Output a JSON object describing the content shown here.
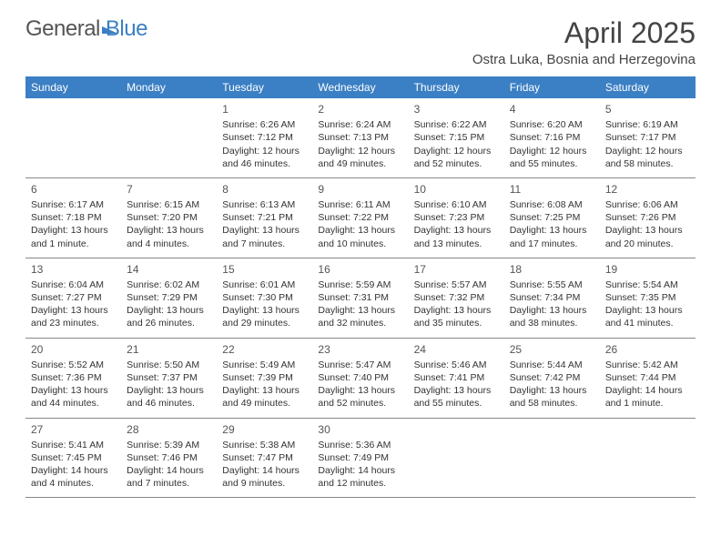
{
  "brand": {
    "part1": "General",
    "part2": "Blue"
  },
  "title": "April 2025",
  "location": "Ostra Luka, Bosnia and Herzegovina",
  "colors": {
    "header_bg": "#3b7fc4",
    "header_text": "#ffffff",
    "body_text": "#333333",
    "rule": "#888888",
    "background": "#ffffff"
  },
  "weekdays": [
    "Sunday",
    "Monday",
    "Tuesday",
    "Wednesday",
    "Thursday",
    "Friday",
    "Saturday"
  ],
  "weeks": [
    [
      null,
      null,
      {
        "n": "1",
        "sr": "Sunrise: 6:26 AM",
        "ss": "Sunset: 7:12 PM",
        "dl": "Daylight: 12 hours and 46 minutes."
      },
      {
        "n": "2",
        "sr": "Sunrise: 6:24 AM",
        "ss": "Sunset: 7:13 PM",
        "dl": "Daylight: 12 hours and 49 minutes."
      },
      {
        "n": "3",
        "sr": "Sunrise: 6:22 AM",
        "ss": "Sunset: 7:15 PM",
        "dl": "Daylight: 12 hours and 52 minutes."
      },
      {
        "n": "4",
        "sr": "Sunrise: 6:20 AM",
        "ss": "Sunset: 7:16 PM",
        "dl": "Daylight: 12 hours and 55 minutes."
      },
      {
        "n": "5",
        "sr": "Sunrise: 6:19 AM",
        "ss": "Sunset: 7:17 PM",
        "dl": "Daylight: 12 hours and 58 minutes."
      }
    ],
    [
      {
        "n": "6",
        "sr": "Sunrise: 6:17 AM",
        "ss": "Sunset: 7:18 PM",
        "dl": "Daylight: 13 hours and 1 minute."
      },
      {
        "n": "7",
        "sr": "Sunrise: 6:15 AM",
        "ss": "Sunset: 7:20 PM",
        "dl": "Daylight: 13 hours and 4 minutes."
      },
      {
        "n": "8",
        "sr": "Sunrise: 6:13 AM",
        "ss": "Sunset: 7:21 PM",
        "dl": "Daylight: 13 hours and 7 minutes."
      },
      {
        "n": "9",
        "sr": "Sunrise: 6:11 AM",
        "ss": "Sunset: 7:22 PM",
        "dl": "Daylight: 13 hours and 10 minutes."
      },
      {
        "n": "10",
        "sr": "Sunrise: 6:10 AM",
        "ss": "Sunset: 7:23 PM",
        "dl": "Daylight: 13 hours and 13 minutes."
      },
      {
        "n": "11",
        "sr": "Sunrise: 6:08 AM",
        "ss": "Sunset: 7:25 PM",
        "dl": "Daylight: 13 hours and 17 minutes."
      },
      {
        "n": "12",
        "sr": "Sunrise: 6:06 AM",
        "ss": "Sunset: 7:26 PM",
        "dl": "Daylight: 13 hours and 20 minutes."
      }
    ],
    [
      {
        "n": "13",
        "sr": "Sunrise: 6:04 AM",
        "ss": "Sunset: 7:27 PM",
        "dl": "Daylight: 13 hours and 23 minutes."
      },
      {
        "n": "14",
        "sr": "Sunrise: 6:02 AM",
        "ss": "Sunset: 7:29 PM",
        "dl": "Daylight: 13 hours and 26 minutes."
      },
      {
        "n": "15",
        "sr": "Sunrise: 6:01 AM",
        "ss": "Sunset: 7:30 PM",
        "dl": "Daylight: 13 hours and 29 minutes."
      },
      {
        "n": "16",
        "sr": "Sunrise: 5:59 AM",
        "ss": "Sunset: 7:31 PM",
        "dl": "Daylight: 13 hours and 32 minutes."
      },
      {
        "n": "17",
        "sr": "Sunrise: 5:57 AM",
        "ss": "Sunset: 7:32 PM",
        "dl": "Daylight: 13 hours and 35 minutes."
      },
      {
        "n": "18",
        "sr": "Sunrise: 5:55 AM",
        "ss": "Sunset: 7:34 PM",
        "dl": "Daylight: 13 hours and 38 minutes."
      },
      {
        "n": "19",
        "sr": "Sunrise: 5:54 AM",
        "ss": "Sunset: 7:35 PM",
        "dl": "Daylight: 13 hours and 41 minutes."
      }
    ],
    [
      {
        "n": "20",
        "sr": "Sunrise: 5:52 AM",
        "ss": "Sunset: 7:36 PM",
        "dl": "Daylight: 13 hours and 44 minutes."
      },
      {
        "n": "21",
        "sr": "Sunrise: 5:50 AM",
        "ss": "Sunset: 7:37 PM",
        "dl": "Daylight: 13 hours and 46 minutes."
      },
      {
        "n": "22",
        "sr": "Sunrise: 5:49 AM",
        "ss": "Sunset: 7:39 PM",
        "dl": "Daylight: 13 hours and 49 minutes."
      },
      {
        "n": "23",
        "sr": "Sunrise: 5:47 AM",
        "ss": "Sunset: 7:40 PM",
        "dl": "Daylight: 13 hours and 52 minutes."
      },
      {
        "n": "24",
        "sr": "Sunrise: 5:46 AM",
        "ss": "Sunset: 7:41 PM",
        "dl": "Daylight: 13 hours and 55 minutes."
      },
      {
        "n": "25",
        "sr": "Sunrise: 5:44 AM",
        "ss": "Sunset: 7:42 PM",
        "dl": "Daylight: 13 hours and 58 minutes."
      },
      {
        "n": "26",
        "sr": "Sunrise: 5:42 AM",
        "ss": "Sunset: 7:44 PM",
        "dl": "Daylight: 14 hours and 1 minute."
      }
    ],
    [
      {
        "n": "27",
        "sr": "Sunrise: 5:41 AM",
        "ss": "Sunset: 7:45 PM",
        "dl": "Daylight: 14 hours and 4 minutes."
      },
      {
        "n": "28",
        "sr": "Sunrise: 5:39 AM",
        "ss": "Sunset: 7:46 PM",
        "dl": "Daylight: 14 hours and 7 minutes."
      },
      {
        "n": "29",
        "sr": "Sunrise: 5:38 AM",
        "ss": "Sunset: 7:47 PM",
        "dl": "Daylight: 14 hours and 9 minutes."
      },
      {
        "n": "30",
        "sr": "Sunrise: 5:36 AM",
        "ss": "Sunset: 7:49 PM",
        "dl": "Daylight: 14 hours and 12 minutes."
      },
      null,
      null,
      null
    ]
  ]
}
